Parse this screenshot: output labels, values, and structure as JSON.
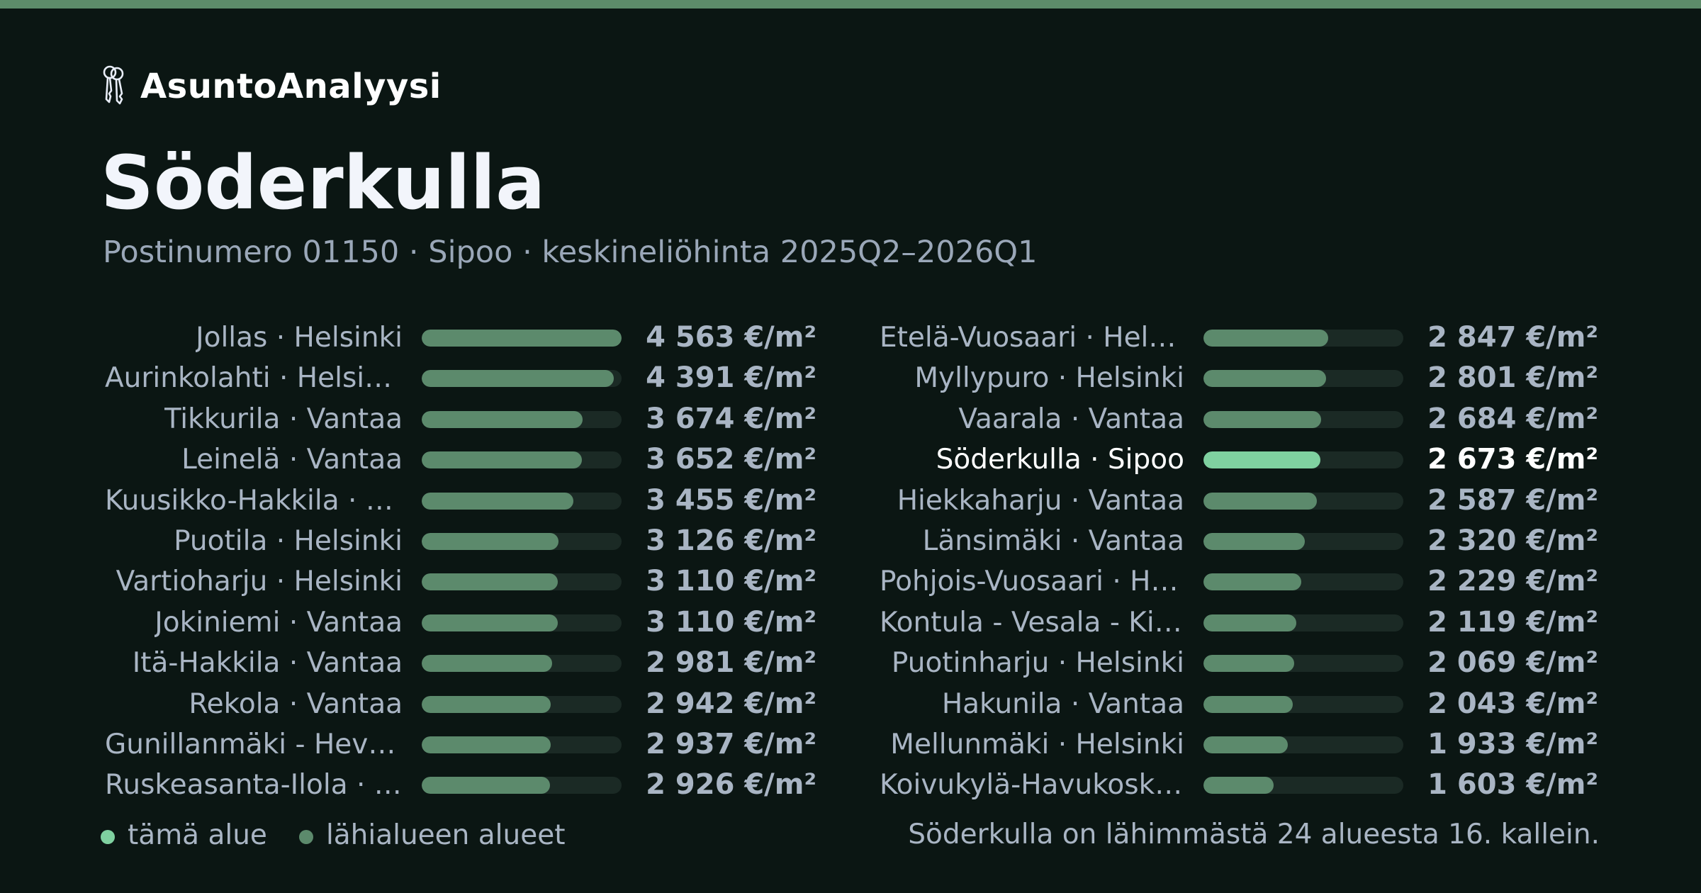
{
  "colors": {
    "accent": "#5d8c6a",
    "background": "#0b1613",
    "highlight_bar": "#7fd1a0",
    "neighbor_bar": "#5c8a6c",
    "track": "#1b2a25"
  },
  "brand": {
    "icon": "keys-icon",
    "name": "AsuntoAnalyysi"
  },
  "title": "Söderkulla",
  "subtitle": "Postinumero 01150 · Sipoo · keskineliöhinta 2025Q2–2026Q1",
  "scale_max": 4563,
  "left_rows": [
    {
      "name": "Jollas · Helsinki",
      "price": 4563,
      "value": "4 563 €/m²",
      "highlight": false
    },
    {
      "name": "Aurinkolahti · Helsinki",
      "price": 4391,
      "value": "4 391 €/m²",
      "highlight": false
    },
    {
      "name": "Tikkurila · Vantaa",
      "price": 3674,
      "value": "3 674 €/m²",
      "highlight": false
    },
    {
      "name": "Leinelä · Vantaa",
      "price": 3652,
      "value": "3 652 €/m²",
      "highlight": false
    },
    {
      "name": "Kuusikko-Hakkila · Vantaa",
      "price": 3455,
      "value": "3 455 €/m²",
      "highlight": false
    },
    {
      "name": "Puotila · Helsinki",
      "price": 3126,
      "value": "3 126 €/m²",
      "highlight": false
    },
    {
      "name": "Vartioharju · Helsinki",
      "price": 3110,
      "value": "3 110 €/m²",
      "highlight": false
    },
    {
      "name": "Jokiniemi · Vantaa",
      "price": 3110,
      "value": "3 110 €/m²",
      "highlight": false
    },
    {
      "name": "Itä-Hakkila · Vantaa",
      "price": 2981,
      "value": "2 981 €/m²",
      "highlight": false
    },
    {
      "name": "Rekola · Vantaa",
      "price": 2942,
      "value": "2 942 €/m²",
      "highlight": false
    },
    {
      "name": "Gunillanmäki - Hevossalmi · Helsinki",
      "price": 2937,
      "value": "2 937 €/m²",
      "highlight": false
    },
    {
      "name": "Ruskeasanta-Ilola · Vantaa",
      "price": 2926,
      "value": "2 926 €/m²",
      "highlight": false
    }
  ],
  "right_rows": [
    {
      "name": "Etelä-Vuosaari · Helsinki",
      "price": 2847,
      "value": "2 847 €/m²",
      "highlight": false
    },
    {
      "name": "Myllypuro · Helsinki",
      "price": 2801,
      "value": "2 801 €/m²",
      "highlight": false
    },
    {
      "name": "Vaarala · Vantaa",
      "price": 2684,
      "value": "2 684 €/m²",
      "highlight": false
    },
    {
      "name": "Söderkulla · Sipoo",
      "price": 2673,
      "value": "2 673 €/m²",
      "highlight": true
    },
    {
      "name": "Hiekkaharju · Vantaa",
      "price": 2587,
      "value": "2 587 €/m²",
      "highlight": false
    },
    {
      "name": "Länsimäki · Vantaa",
      "price": 2320,
      "value": "2 320 €/m²",
      "highlight": false
    },
    {
      "name": "Pohjois-Vuosaari · Helsinki",
      "price": 2229,
      "value": "2 229 €/m²",
      "highlight": false
    },
    {
      "name": "Kontula - Vesala - Kivikko · Helsinki",
      "price": 2119,
      "value": "2 119 €/m²",
      "highlight": false
    },
    {
      "name": "Puotinharju · Helsinki",
      "price": 2069,
      "value": "2 069 €/m²",
      "highlight": false
    },
    {
      "name": "Hakunila · Vantaa",
      "price": 2043,
      "value": "2 043 €/m²",
      "highlight": false
    },
    {
      "name": "Mellunmäki · Helsinki",
      "price": 1933,
      "value": "1 933 €/m²",
      "highlight": false
    },
    {
      "name": "Koivukylä-Havukoski · Vantaa",
      "price": 1603,
      "value": "1 603 €/m²",
      "highlight": false
    }
  ],
  "legend": {
    "this_area": "tämä alue",
    "nearby": "lähialueen alueet"
  },
  "summary": "Söderkulla on lähimmästä 24 alueesta 16. kallein."
}
